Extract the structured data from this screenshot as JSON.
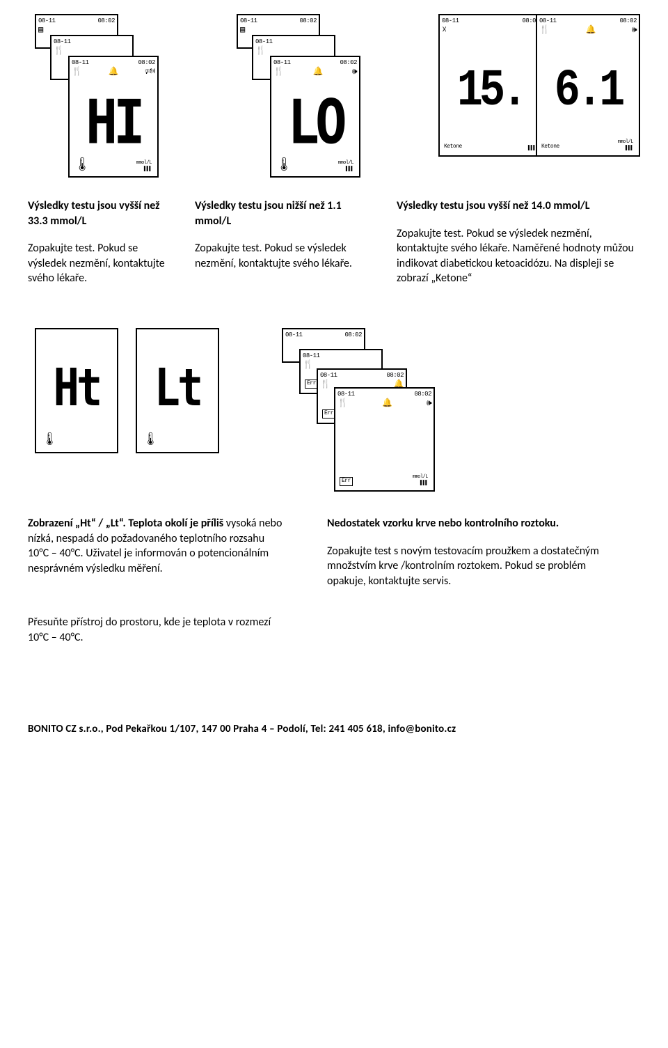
{
  "row1_imgs": {
    "hi": {
      "date": "08-11",
      "time": "08:02",
      "main": "HI",
      "ketone": "",
      "unit": "mmol/L"
    },
    "lo": {
      "date": "08-11",
      "time": "08:02",
      "main": "LO",
      "ketone": "",
      "unit": "mmol/L"
    },
    "ket": {
      "date": "08-11",
      "time": "08:02",
      "left_val": "15.",
      "right_val": "6.1",
      "ketone": "Ketone",
      "unit": "mmol/L"
    }
  },
  "row1_text": {
    "col1_title": "Výsledky testu jsou vyšší než 33.3 mmol/L",
    "col1_body": "Zopakujte test. Pokud se výsledek nezmění, kontaktujte svého lékaře.",
    "col2_title": "Výsledky testu jsou nižší než 1.1 mmol/L",
    "col2_body": "Zopakujte test. Pokud se výsledek nezmění, kontaktujte svého lékaře.",
    "col3_title": "Výsledky testu jsou vyšší než 14.0 mmol/L",
    "col3_body": "Zopakujte test. Pokud se výsledek nezmění, kontaktujte svého lékaře. Naměřené hodnoty můžou indikovat diabetickou ketoacidózu. Na displeji se zobrazí „Ketone“"
  },
  "row2_imgs": {
    "ht": "Ht",
    "lt": "Lt",
    "err": {
      "date": "08-11",
      "time": "08:02",
      "label": "Err",
      "unit": "mmol/L"
    }
  },
  "row2_text": {
    "left_title": "Zobrazení „Ht“ / „Lt“. Teplota okolí je příliš",
    "left_body": "vysoká nebo nízká, nespadá do požadovaného teplotního rozsahu 10°C – 40°C. Uživatel je informován o potencionálním nesprávném výsledku měření.",
    "right_title": "Nedostatek vzorku krve nebo kontrolního roztoku.",
    "right_body": "Zopakujte test s novým testovacím proužkem a dostatečným množstvím krve /kontrolním roztokem. Pokud se problém opakuje, kontaktujte servis."
  },
  "extra": "Přesuňte přístroj do prostoru, kde je teplota v rozmezí 10°C – 40°C.",
  "footer": "BONITO CZ s.r.o., Pod Pekařkou 1/107, 147 00 Praha 4 – Podolí, Tel: 241 405 618, info@bonito.cz",
  "therm": "🌡",
  "bell": "🔔",
  "fork": "🍴",
  "barcode": "▌▌▌"
}
